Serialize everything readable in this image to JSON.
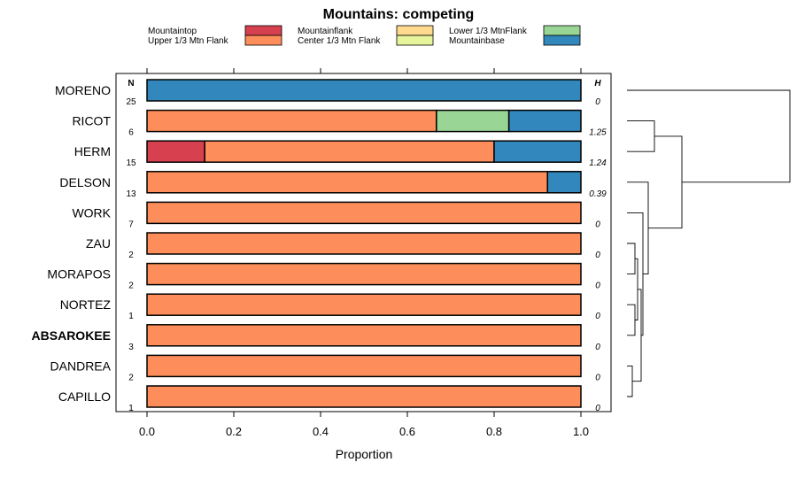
{
  "colors": {
    "Mountaintop": "#d7404e",
    "Upper 1/3 Mtn Flank": "#fd8d5a",
    "Mountainflank": "#fed98e",
    "Center 1/3 Mtn Flank": "#e6f59c",
    "Lower 1/3 MtnFlank": "#99d594",
    "Mountainbase": "#3288bd"
  },
  "chart_data": {
    "type": "bar",
    "orientation": "horizontal-stacked",
    "title": "Mountains: competing",
    "xlabel": "Proportion",
    "ylabel": "",
    "xlim": [
      0,
      1
    ],
    "xticks": [
      "0.0",
      "0.2",
      "0.4",
      "0.6",
      "0.8",
      "1.0"
    ],
    "xtick_values": [
      0,
      0.2,
      0.4,
      0.6,
      0.8,
      1.0
    ],
    "n_header": "N",
    "h_header": "H",
    "legend": [
      "Mountaintop",
      "Upper 1/3 Mtn Flank",
      "Mountainflank",
      "Center 1/3 Mtn Flank",
      "Lower 1/3 MtnFlank",
      "Mountainbase"
    ],
    "rows": [
      {
        "label": "MORENO",
        "bold": false,
        "n": "25",
        "h": "0",
        "segments": [
          {
            "category": "Mountainbase",
            "value": 1.0
          }
        ]
      },
      {
        "label": "RICOT",
        "bold": false,
        "n": "6",
        "h": "1.25",
        "segments": [
          {
            "category": "Upper 1/3 Mtn Flank",
            "value": 0.667
          },
          {
            "category": "Lower 1/3 MtnFlank",
            "value": 0.167
          },
          {
            "category": "Mountainbase",
            "value": 0.166
          }
        ]
      },
      {
        "label": "HERM",
        "bold": false,
        "n": "15",
        "h": "1.24",
        "segments": [
          {
            "category": "Mountaintop",
            "value": 0.133
          },
          {
            "category": "Upper 1/3 Mtn Flank",
            "value": 0.667
          },
          {
            "category": "Mountainbase",
            "value": 0.2
          }
        ]
      },
      {
        "label": "DELSON",
        "bold": false,
        "n": "13",
        "h": "0.39",
        "segments": [
          {
            "category": "Upper 1/3 Mtn Flank",
            "value": 0.923
          },
          {
            "category": "Mountainbase",
            "value": 0.077
          }
        ]
      },
      {
        "label": "WORK",
        "bold": false,
        "n": "7",
        "h": "0",
        "segments": [
          {
            "category": "Upper 1/3 Mtn Flank",
            "value": 1.0
          }
        ]
      },
      {
        "label": "ZAU",
        "bold": false,
        "n": "2",
        "h": "0",
        "segments": [
          {
            "category": "Upper 1/3 Mtn Flank",
            "value": 1.0
          }
        ]
      },
      {
        "label": "MORAPOS",
        "bold": false,
        "n": "2",
        "h": "0",
        "segments": [
          {
            "category": "Upper 1/3 Mtn Flank",
            "value": 1.0
          }
        ]
      },
      {
        "label": "NORTEZ",
        "bold": false,
        "n": "1",
        "h": "0",
        "segments": [
          {
            "category": "Upper 1/3 Mtn Flank",
            "value": 1.0
          }
        ]
      },
      {
        "label": "ABSAROKEE",
        "bold": true,
        "n": "3",
        "h": "0",
        "segments": [
          {
            "category": "Upper 1/3 Mtn Flank",
            "value": 1.0
          }
        ]
      },
      {
        "label": "DANDREA",
        "bold": false,
        "n": "2",
        "h": "0",
        "segments": [
          {
            "category": "Upper 1/3 Mtn Flank",
            "value": 1.0
          }
        ]
      },
      {
        "label": "CAPILLO",
        "bold": false,
        "n": "1",
        "h": "0",
        "segments": [
          {
            "category": "Upper 1/3 Mtn Flank",
            "value": 1.0
          }
        ]
      }
    ],
    "dendrogram": "hierarchical clustering of rows (right side)"
  }
}
